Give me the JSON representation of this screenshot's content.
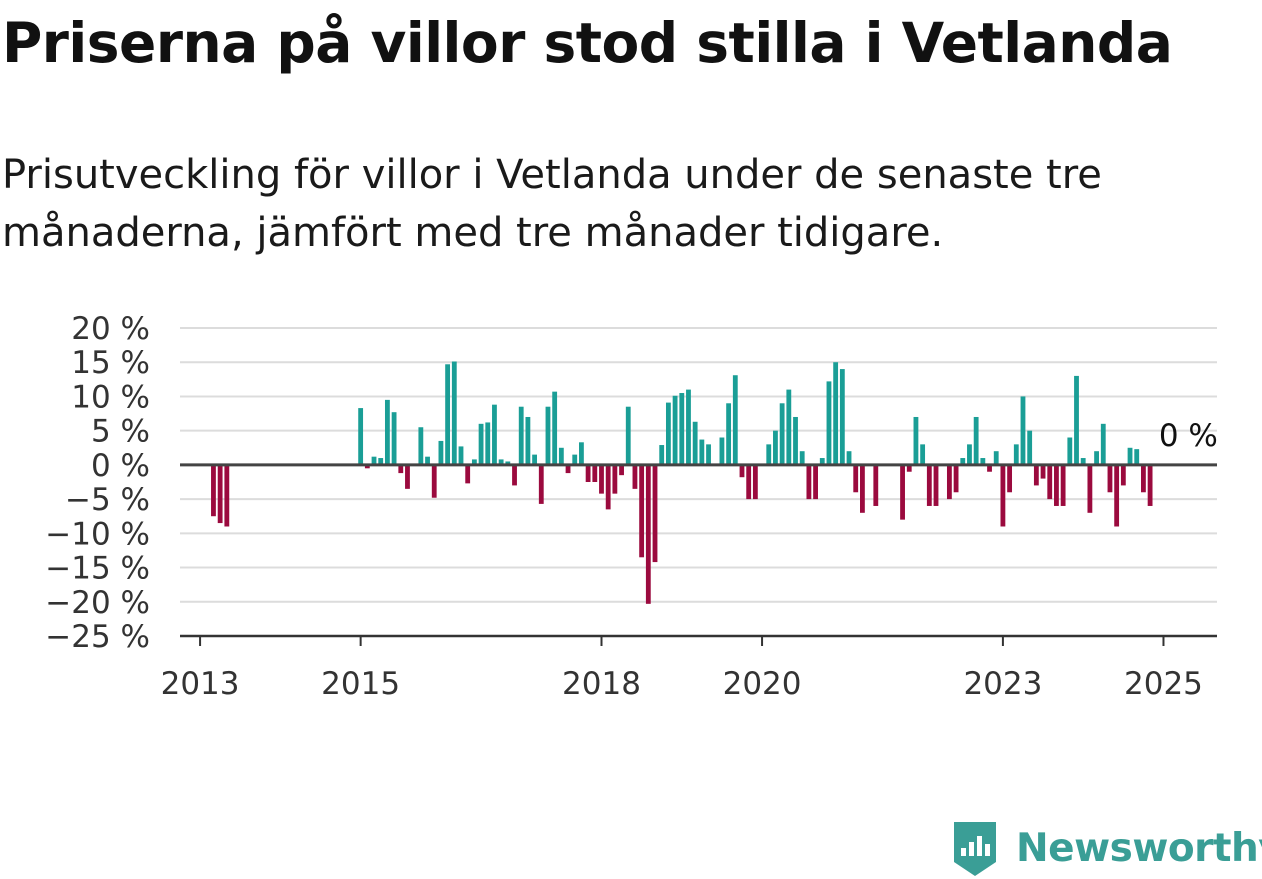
{
  "header": {
    "title": "Priserna på villor stod stilla i Vetlanda",
    "subtitle": "Prisutveckling för villor i Vetlanda under de senaste tre månaderna, jämfört med tre månader tidigare."
  },
  "brand": {
    "name": "Newsworthy",
    "color": "#3a9e96"
  },
  "chart_data": {
    "type": "bar",
    "title": "",
    "xlabel": "",
    "ylabel": "",
    "ylim": [
      -25,
      20
    ],
    "yticks": [
      20,
      15,
      10,
      5,
      0,
      -5,
      -10,
      -15,
      -20,
      -25
    ],
    "ytick_labels": [
      "20 %",
      "15 %",
      "10 %",
      "5 %",
      "0 %",
      "−5 %",
      "−10 %",
      "−15 %",
      "−20 %",
      "−25 %"
    ],
    "xlim": [
      "2012-10",
      "2025-09"
    ],
    "xticks": [
      "2013-01",
      "2015-01",
      "2018-01",
      "2020-01",
      "2023-01",
      "2025-01"
    ],
    "xtick_labels": [
      "2013",
      "2015",
      "2018",
      "2020",
      "2023",
      "2025"
    ],
    "grid": true,
    "positive_color": "#1a9e96",
    "negative_color": "#9b0a3e",
    "zero_line_color": "#444444",
    "annotation": {
      "text": "0 %",
      "month": "2025-03",
      "value": 0
    },
    "series": [
      {
        "months": [
          "2013-03",
          "2013-04",
          "2013-05",
          "2015-01",
          "2015-02",
          "2015-03",
          "2015-04",
          "2015-05",
          "2015-06",
          "2015-07",
          "2015-08",
          "2015-10",
          "2015-11",
          "2015-12",
          "2016-01",
          "2016-02",
          "2016-03",
          "2016-04",
          "2016-05",
          "2016-06",
          "2016-07",
          "2016-08",
          "2016-09",
          "2016-10",
          "2016-11",
          "2016-12",
          "2017-01",
          "2017-02",
          "2017-03",
          "2017-04",
          "2017-05",
          "2017-06",
          "2017-07",
          "2017-08",
          "2017-09",
          "2017-10",
          "2017-11",
          "2017-12",
          "2018-01",
          "2018-02",
          "2018-03",
          "2018-04",
          "2018-05",
          "2018-06",
          "2018-07",
          "2018-08",
          "2018-09",
          "2018-10",
          "2018-11",
          "2018-12",
          "2019-01",
          "2019-02",
          "2019-03",
          "2019-04",
          "2019-05",
          "2019-06",
          "2019-07",
          "2019-08",
          "2019-09",
          "2019-10",
          "2019-11",
          "2019-12",
          "2020-01",
          "2020-02",
          "2020-03",
          "2020-04",
          "2020-05",
          "2020-06",
          "2020-07",
          "2020-08",
          "2020-09",
          "2020-10",
          "2020-11",
          "2020-12",
          "2021-01",
          "2021-02",
          "2021-03",
          "2021-04",
          "2021-06",
          "2021-10",
          "2021-11",
          "2021-12",
          "2022-01",
          "2022-02",
          "2022-03",
          "2022-05",
          "2022-06",
          "2022-07",
          "2022-08",
          "2022-09",
          "2022-10",
          "2022-11",
          "2022-12",
          "2023-01",
          "2023-02",
          "2023-03",
          "2023-04",
          "2023-05",
          "2023-06",
          "2023-07",
          "2023-08",
          "2023-09",
          "2023-10",
          "2023-11",
          "2023-12",
          "2024-01",
          "2024-02",
          "2024-03",
          "2024-04",
          "2024-05",
          "2024-06",
          "2024-07",
          "2024-08",
          "2024-09",
          "2024-10",
          "2024-11",
          "2024-12",
          "2025-01",
          "2025-02",
          "2025-03"
        ],
        "values": [
          -7.5,
          -8.5,
          -9,
          8.3,
          -0.5,
          1.2,
          1.0,
          9.5,
          7.7,
          -1.2,
          -3.5,
          5.5,
          1.2,
          -4.8,
          3.5,
          14.7,
          15.1,
          2.7,
          -2.7,
          0.8,
          6.0,
          6.2,
          8.8,
          0.8,
          0.5,
          -3.0,
          8.5,
          7.0,
          1.5,
          -5.7,
          8.5,
          10.7,
          2.5,
          -1.2,
          1.5,
          3.3,
          -2.5,
          -2.5,
          -4.2,
          -6.5,
          -4.2,
          -1.5,
          8.5,
          -3.5,
          -13.5,
          -20.3,
          -14.2,
          2.9,
          9.1,
          10.1,
          10.5,
          11.0,
          6.3,
          3.7,
          3.0,
          0,
          4.0,
          9.0,
          13.1,
          -1.8,
          -5.0,
          -5.0,
          0,
          3.0,
          5.0,
          9.0,
          11.0,
          7.0,
          2.0,
          -5.0,
          -5.0,
          1.0,
          12.2,
          15.0,
          14.0,
          2.0,
          -4.0,
          -7.0,
          -6.0,
          -8.0,
          -1.0,
          7.0,
          3.0,
          -6.0,
          -6.0,
          -5.0,
          -4.0,
          1.0,
          3.0,
          7.0,
          1.0,
          -1.0,
          2.0,
          -9.0,
          -4.0,
          3.0,
          10.0,
          5.0,
          -3.0,
          -2.0,
          -5.0,
          -6.0,
          -6.0,
          4.0,
          13.0,
          1.0,
          -7.0,
          2.0,
          6.0,
          -4.0,
          -9.0,
          -3.0,
          2.5,
          2.3,
          -4.0,
          -6.0,
          0.2,
          0.1,
          0,
          0
        ]
      }
    ]
  }
}
